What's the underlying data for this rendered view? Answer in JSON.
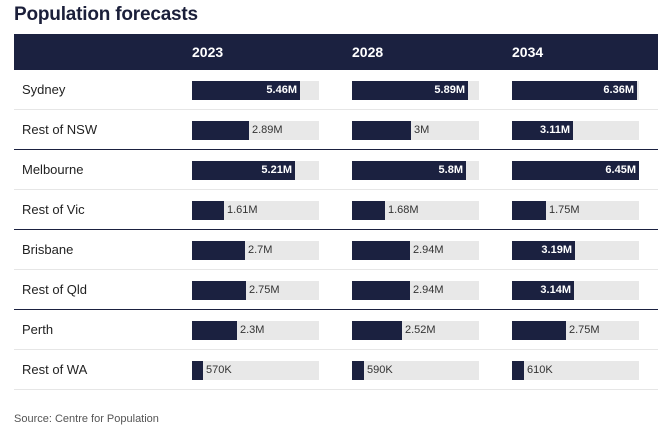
{
  "title": "Population forecasts",
  "source": "Source: Centre for Population",
  "chart_data": {
    "type": "bar",
    "title": "Population forecasts",
    "years": [
      "2023",
      "2028",
      "2034"
    ],
    "max_scale": 6.45,
    "rows": [
      {
        "region": "Sydney",
        "values": [
          5.46,
          5.89,
          6.36
        ],
        "labels": [
          "5.46M",
          "5.89M",
          "6.36M"
        ]
      },
      {
        "region": "Rest of NSW",
        "values": [
          2.89,
          3.0,
          3.11
        ],
        "labels": [
          "2.89M",
          "3M",
          "3.11M"
        ]
      },
      {
        "region": "Melbourne",
        "values": [
          5.21,
          5.8,
          6.45
        ],
        "labels": [
          "5.21M",
          "5.8M",
          "6.45M"
        ]
      },
      {
        "region": "Rest of Vic",
        "values": [
          1.61,
          1.68,
          1.75
        ],
        "labels": [
          "1.61M",
          "1.68M",
          "1.75M"
        ]
      },
      {
        "region": "Brisbane",
        "values": [
          2.7,
          2.94,
          3.19
        ],
        "labels": [
          "2.7M",
          "2.94M",
          "3.19M"
        ]
      },
      {
        "region": "Rest of Qld",
        "values": [
          2.75,
          2.94,
          3.14
        ],
        "labels": [
          "2.75M",
          "2.94M",
          "3.14M"
        ]
      },
      {
        "region": "Perth",
        "values": [
          2.3,
          2.52,
          2.75
        ],
        "labels": [
          "2.3M",
          "2.52M",
          "2.75M"
        ]
      },
      {
        "region": "Rest of WA",
        "values": [
          0.57,
          0.59,
          0.61
        ],
        "labels": [
          "570K",
          "590K",
          "610K"
        ]
      }
    ],
    "bar_color": "#1b2140",
    "track_color": "#e8e8e8"
  }
}
